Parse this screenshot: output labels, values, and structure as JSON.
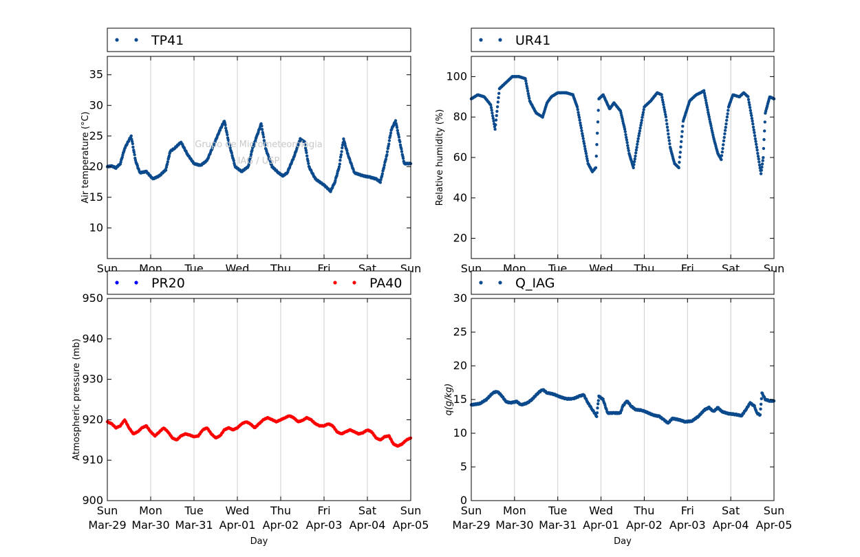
{
  "watermark": {
    "line1": "Grupo de Micrometeorologia",
    "line2": "IAG / USP"
  },
  "days": [
    {
      "weekday": "Sun",
      "date": "Mar-29"
    },
    {
      "weekday": "Mon",
      "date": "Mar-30"
    },
    {
      "weekday": "Tue",
      "date": "Mar-31"
    },
    {
      "weekday": "Wed",
      "date": "Apr-01"
    },
    {
      "weekday": "Thu",
      "date": "Apr-02"
    },
    {
      "weekday": "Fri",
      "date": "Apr-03"
    },
    {
      "weekday": "Sat",
      "date": "Apr-04"
    },
    {
      "weekday": "Sun",
      "date": "Apr-05"
    }
  ],
  "chart_data": [
    {
      "type": "scatter",
      "xlabel": "Day",
      "ylabel": "Air temperature (°C)",
      "ylim": [
        5,
        38
      ],
      "yticks": [
        10,
        15,
        20,
        25,
        30,
        35
      ],
      "xlim": [
        0,
        7
      ],
      "x_unit": "days since Sun Mar-29 00:00",
      "grid": "vertical",
      "legend_position": "top",
      "series": [
        {
          "name": "TP41",
          "color": "#0b4a8c",
          "points": [
            [
              0,
              20
            ],
            [
              0.1,
              20.1
            ],
            [
              0.2,
              19.8
            ],
            [
              0.3,
              20.5
            ],
            [
              0.4,
              23
            ],
            [
              0.55,
              25
            ],
            [
              0.65,
              21
            ],
            [
              0.75,
              19
            ],
            [
              0.9,
              19.2
            ],
            [
              1.05,
              18
            ],
            [
              1.2,
              18.5
            ],
            [
              1.35,
              19.5
            ],
            [
              1.45,
              22.5
            ],
            [
              1.55,
              23
            ],
            [
              1.7,
              24
            ],
            [
              1.85,
              22
            ],
            [
              2,
              20.5
            ],
            [
              2.15,
              20.2
            ],
            [
              2.3,
              21
            ],
            [
              2.45,
              23.5
            ],
            [
              2.6,
              26
            ],
            [
              2.7,
              27.5
            ],
            [
              2.8,
              24
            ],
            [
              2.95,
              20
            ],
            [
              3.1,
              19.2
            ],
            [
              3.25,
              20
            ],
            [
              3.35,
              23
            ],
            [
              3.45,
              25
            ],
            [
              3.55,
              27
            ],
            [
              3.65,
              23
            ],
            [
              3.8,
              20
            ],
            [
              3.95,
              19
            ],
            [
              4.05,
              18.5
            ],
            [
              4.15,
              19
            ],
            [
              4.3,
              21.5
            ],
            [
              4.45,
              24.5
            ],
            [
              4.55,
              24
            ],
            [
              4.65,
              20
            ],
            [
              4.8,
              18
            ],
            [
              5,
              17
            ],
            [
              5.15,
              16
            ],
            [
              5.25,
              17.5
            ],
            [
              5.35,
              20
            ],
            [
              5.45,
              24.5
            ],
            [
              5.55,
              22
            ],
            [
              5.7,
              19
            ],
            [
              5.9,
              18.5
            ],
            [
              6.05,
              18.3
            ],
            [
              6.2,
              18
            ],
            [
              6.3,
              17.5
            ],
            [
              6.45,
              22
            ],
            [
              6.55,
              26
            ],
            [
              6.65,
              27.5
            ],
            [
              6.75,
              24
            ],
            [
              6.85,
              20.5
            ],
            [
              7,
              20.5
            ]
          ]
        }
      ]
    },
    {
      "type": "scatter",
      "xlabel": "Day",
      "ylabel": "Relative humidity (%)",
      "ylim": [
        10,
        110
      ],
      "yticks": [
        20,
        40,
        60,
        80,
        100
      ],
      "xlim": [
        0,
        7
      ],
      "x_unit": "days since Sun Mar-29 00:00",
      "grid": "vertical",
      "legend_position": "top",
      "series": [
        {
          "name": "UR41",
          "color": "#0b4a8c",
          "points": [
            [
              0,
              89
            ],
            [
              0.15,
              91
            ],
            [
              0.3,
              90
            ],
            [
              0.45,
              86
            ],
            [
              0.55,
              74
            ],
            [
              0.65,
              94
            ],
            [
              0.8,
              97
            ],
            [
              0.95,
              100
            ],
            [
              1.1,
              100
            ],
            [
              1.25,
              99
            ],
            [
              1.35,
              88
            ],
            [
              1.5,
              82
            ],
            [
              1.65,
              80
            ],
            [
              1.75,
              87
            ],
            [
              1.85,
              90
            ],
            [
              2,
              92
            ],
            [
              2.2,
              92
            ],
            [
              2.35,
              91
            ],
            [
              2.45,
              85
            ],
            [
              2.6,
              68
            ],
            [
              2.7,
              57
            ],
            [
              2.8,
              53
            ],
            [
              2.88,
              55
            ],
            [
              2.95,
              89
            ],
            [
              3.05,
              91
            ],
            [
              3.2,
              84
            ],
            [
              3.3,
              87
            ],
            [
              3.45,
              83
            ],
            [
              3.55,
              74
            ],
            [
              3.65,
              62
            ],
            [
              3.75,
              55
            ],
            [
              3.85,
              68
            ],
            [
              4,
              85
            ],
            [
              4.15,
              88
            ],
            [
              4.3,
              92
            ],
            [
              4.4,
              91
            ],
            [
              4.5,
              80
            ],
            [
              4.6,
              65
            ],
            [
              4.7,
              57
            ],
            [
              4.8,
              55
            ],
            [
              4.9,
              78
            ],
            [
              5.05,
              88
            ],
            [
              5.2,
              91
            ],
            [
              5.3,
              92
            ],
            [
              5.38,
              93
            ],
            [
              5.5,
              80
            ],
            [
              5.6,
              70
            ],
            [
              5.7,
              62
            ],
            [
              5.78,
              59
            ],
            [
              5.85,
              70
            ],
            [
              5.95,
              85
            ],
            [
              6.05,
              91
            ],
            [
              6.2,
              90
            ],
            [
              6.3,
              92
            ],
            [
              6.4,
              90
            ],
            [
              6.5,
              78
            ],
            [
              6.6,
              65
            ],
            [
              6.7,
              52
            ],
            [
              6.75,
              60
            ],
            [
              6.8,
              82
            ],
            [
              6.9,
              90
            ],
            [
              7,
              89
            ]
          ]
        }
      ]
    },
    {
      "type": "scatter",
      "xlabel": "Day",
      "ylabel": "Atmospheric pressure (mb)",
      "ylim": [
        900,
        950
      ],
      "yticks": [
        900,
        910,
        920,
        930,
        940,
        950
      ],
      "xlim": [
        0,
        7
      ],
      "x_unit": "days since Sun Mar-29 00:00",
      "grid": "vertical",
      "legend_position": "top",
      "series": [
        {
          "name": "PR20",
          "color": "#0000ff",
          "points": []
        },
        {
          "name": "PA40",
          "color": "#ff0000",
          "points": [
            [
              0,
              919.5
            ],
            [
              0.1,
              919
            ],
            [
              0.2,
              918
            ],
            [
              0.3,
              918.5
            ],
            [
              0.4,
              920
            ],
            [
              0.5,
              918
            ],
            [
              0.6,
              916.5
            ],
            [
              0.7,
              917
            ],
            [
              0.8,
              918
            ],
            [
              0.9,
              918.5
            ],
            [
              1,
              917
            ],
            [
              1.1,
              916
            ],
            [
              1.2,
              917
            ],
            [
              1.3,
              918
            ],
            [
              1.4,
              917
            ],
            [
              1.5,
              915.5
            ],
            [
              1.6,
              915
            ],
            [
              1.7,
              916
            ],
            [
              1.8,
              916.5
            ],
            [
              1.9,
              916.2
            ],
            [
              2,
              915.8
            ],
            [
              2.1,
              916
            ],
            [
              2.2,
              917.5
            ],
            [
              2.3,
              918
            ],
            [
              2.4,
              916.5
            ],
            [
              2.5,
              915.5
            ],
            [
              2.6,
              916
            ],
            [
              2.7,
              917.5
            ],
            [
              2.8,
              918
            ],
            [
              2.9,
              917.5
            ],
            [
              3,
              918
            ],
            [
              3.1,
              919
            ],
            [
              3.2,
              919.5
            ],
            [
              3.3,
              919
            ],
            [
              3.4,
              918
            ],
            [
              3.5,
              919
            ],
            [
              3.6,
              920
            ],
            [
              3.7,
              920.5
            ],
            [
              3.8,
              920
            ],
            [
              3.9,
              919.5
            ],
            [
              4,
              920
            ],
            [
              4.1,
              920.5
            ],
            [
              4.2,
              921
            ],
            [
              4.3,
              920.5
            ],
            [
              4.4,
              919.5
            ],
            [
              4.5,
              919.8
            ],
            [
              4.6,
              920.5
            ],
            [
              4.7,
              920
            ],
            [
              4.8,
              919
            ],
            [
              4.9,
              918.5
            ],
            [
              5,
              918.5
            ],
            [
              5.1,
              919
            ],
            [
              5.2,
              918.5
            ],
            [
              5.3,
              917
            ],
            [
              5.4,
              916.5
            ],
            [
              5.5,
              917
            ],
            [
              5.6,
              917.5
            ],
            [
              5.7,
              917
            ],
            [
              5.8,
              916.5
            ],
            [
              5.9,
              916.8
            ],
            [
              6,
              917.5
            ],
            [
              6.1,
              917
            ],
            [
              6.2,
              915.5
            ],
            [
              6.3,
              915
            ],
            [
              6.4,
              915.8
            ],
            [
              6.5,
              916
            ],
            [
              6.6,
              914
            ],
            [
              6.7,
              913.5
            ],
            [
              6.8,
              914
            ],
            [
              6.9,
              915
            ],
            [
              7,
              915.5
            ]
          ]
        }
      ]
    },
    {
      "type": "scatter",
      "xlabel": "Day",
      "ylabel": "q(g/kg)",
      "ylim": [
        0,
        30
      ],
      "yticks": [
        0,
        5,
        10,
        15,
        20,
        25,
        30
      ],
      "xlim": [
        0,
        7
      ],
      "x_unit": "days since Sun Mar-29 00:00",
      "grid": "vertical",
      "legend_position": "top",
      "series": [
        {
          "name": "Q_IAG",
          "color": "#0b4a8c",
          "points": [
            [
              0,
              14.2
            ],
            [
              0.2,
              14.4
            ],
            [
              0.35,
              15
            ],
            [
              0.5,
              16
            ],
            [
              0.6,
              16.2
            ],
            [
              0.7,
              15.6
            ],
            [
              0.8,
              14.7
            ],
            [
              0.9,
              14.5
            ],
            [
              1.05,
              14.7
            ],
            [
              1.15,
              14.2
            ],
            [
              1.3,
              14.5
            ],
            [
              1.4,
              15
            ],
            [
              1.55,
              16
            ],
            [
              1.65,
              16.5
            ],
            [
              1.75,
              16
            ],
            [
              1.9,
              15.8
            ],
            [
              2.05,
              15.4
            ],
            [
              2.2,
              15.1
            ],
            [
              2.35,
              15.1
            ],
            [
              2.5,
              15.5
            ],
            [
              2.6,
              15.7
            ],
            [
              2.7,
              14.5
            ],
            [
              2.8,
              13.5
            ],
            [
              2.9,
              12.5
            ],
            [
              2.95,
              15.5
            ],
            [
              3.05,
              15
            ],
            [
              3.15,
              13
            ],
            [
              3.3,
              13
            ],
            [
              3.45,
              13
            ],
            [
              3.5,
              14
            ],
            [
              3.6,
              14.8
            ],
            [
              3.7,
              14
            ],
            [
              3.8,
              13.5
            ],
            [
              3.95,
              13.4
            ],
            [
              4.1,
              13
            ],
            [
              4.2,
              12.7
            ],
            [
              4.35,
              12.5
            ],
            [
              4.45,
              12
            ],
            [
              4.55,
              11.5
            ],
            [
              4.65,
              12.2
            ],
            [
              4.8,
              12
            ],
            [
              4.95,
              11.7
            ],
            [
              5.1,
              11.8
            ],
            [
              5.25,
              12.5
            ],
            [
              5.4,
              13.5
            ],
            [
              5.5,
              13.8
            ],
            [
              5.6,
              13.2
            ],
            [
              5.7,
              13.8
            ],
            [
              5.8,
              13.2
            ],
            [
              5.95,
              12.9
            ],
            [
              6.1,
              12.8
            ],
            [
              6.25,
              12.6
            ],
            [
              6.35,
              13.5
            ],
            [
              6.45,
              14.5
            ],
            [
              6.55,
              14
            ],
            [
              6.6,
              13
            ],
            [
              6.68,
              12.7
            ],
            [
              6.72,
              16
            ],
            [
              6.8,
              15
            ],
            [
              6.9,
              14.8
            ],
            [
              7,
              14.8
            ]
          ]
        }
      ]
    }
  ]
}
